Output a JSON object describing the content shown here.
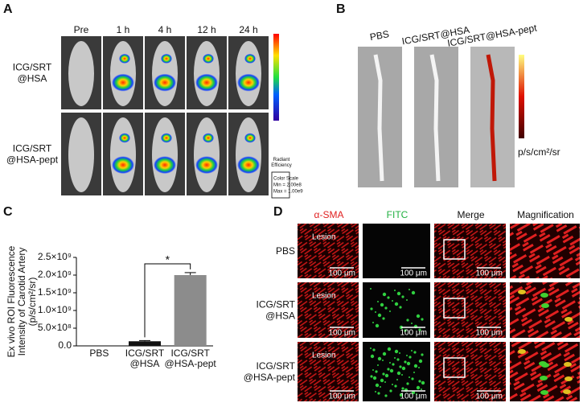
{
  "panel_a": {
    "label": "A",
    "columns": [
      "Pre",
      "1 h",
      "4 h",
      "12 h",
      "24 h"
    ],
    "rows": [
      [
        "ICG/SRT",
        "@HSA"
      ],
      [
        "ICG/SRT",
        "@HSA-pept"
      ]
    ],
    "colorbar_title": [
      "Radiant",
      "Efficiency"
    ],
    "color_scale": [
      "Color Scale",
      "Min = 2.00e8",
      "Max = 1.00e9"
    ]
  },
  "panel_b": {
    "label": "B",
    "columns": [
      "PBS",
      "ICG/SRT@HSA",
      "ICG/SRT@HSA-pept"
    ],
    "colorbar_unit": "p/s/cm²/sr"
  },
  "chart_data": {
    "type": "bar",
    "label": "C",
    "ylabel": [
      "Ex vivo ROI Fluorescence",
      "Intensity of Carotid Artery",
      "(p/s/cm²/sr)"
    ],
    "categories": [
      [
        "PBS"
      ],
      [
        "ICG/SRT",
        "@HSA"
      ],
      [
        "ICG/SRT",
        "@HSA-pept"
      ]
    ],
    "values": [
      0,
      130000000,
      2000000000
    ],
    "errors": [
      0,
      20000000,
      70000000
    ],
    "colors": [
      "#111111",
      "#111111",
      "#8c8c8c"
    ],
    "ylim": [
      0,
      2500000000
    ],
    "yticks": [
      {
        "value": 0,
        "label": "0.0"
      },
      {
        "value": 500000000,
        "label": "5.0×10⁸"
      },
      {
        "value": 1000000000,
        "label": "1.0×10⁹"
      },
      {
        "value": 1500000000,
        "label": "1.5×10⁹"
      },
      {
        "value": 2000000000,
        "label": "2.0×10⁹"
      },
      {
        "value": 2500000000,
        "label": "2.5×10⁹"
      }
    ],
    "significance": "*"
  },
  "panel_d": {
    "label": "D",
    "columns": [
      "α-SMA",
      "FITC",
      "Merge",
      "Magnification"
    ],
    "rows": [
      [
        "PBS"
      ],
      [
        "ICG/SRT",
        "@HSA"
      ],
      [
        "ICG/SRT",
        "@HSA-pept"
      ]
    ],
    "lesion": "Lesion",
    "scale_bar": "100 μm"
  }
}
